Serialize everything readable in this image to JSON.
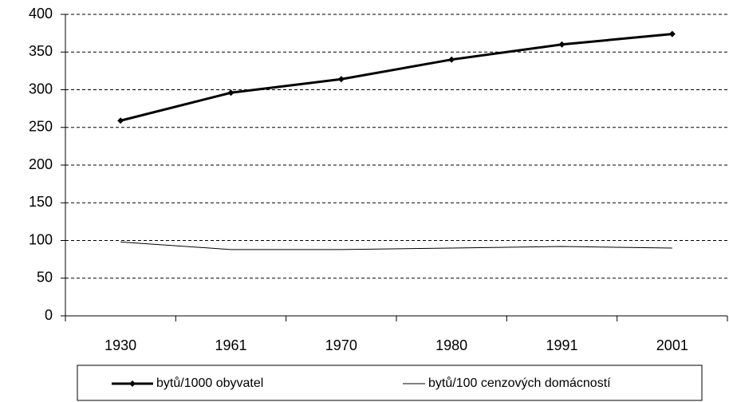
{
  "chart_data": {
    "type": "line",
    "categories": [
      "1930",
      "1961",
      "1970",
      "1980",
      "1991",
      "2001"
    ],
    "series": [
      {
        "name": "bytů/1000 obyvatel",
        "color": "#000000",
        "line_width": 3,
        "marker": "diamond",
        "values": [
          259,
          296,
          314,
          340,
          360,
          374
        ]
      },
      {
        "name": "bytů/100 cenzových domácností",
        "color": "#000000",
        "line_width": 1,
        "values": [
          98,
          88,
          88,
          90,
          92,
          90
        ]
      }
    ],
    "ylim": [
      0,
      400
    ],
    "yticks": [
      0,
      50,
      100,
      150,
      200,
      250,
      300,
      350,
      400
    ],
    "grid": true,
    "legend": "bottom"
  }
}
